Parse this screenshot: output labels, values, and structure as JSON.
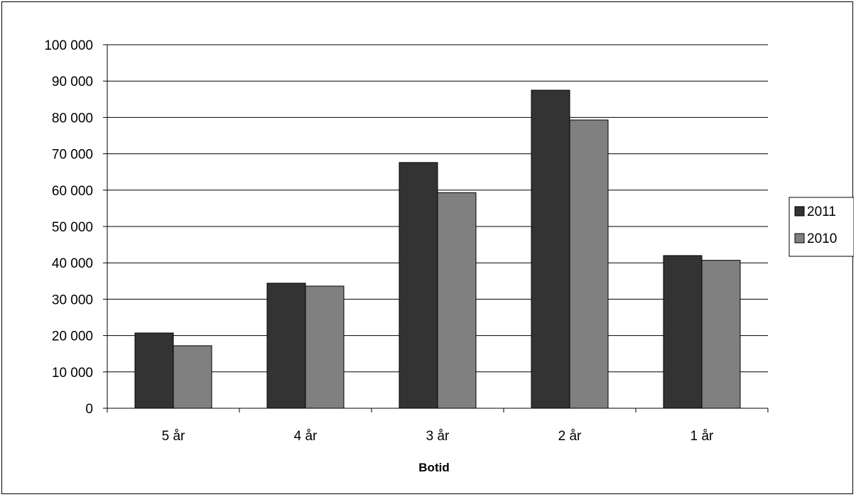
{
  "chart_data": {
    "type": "bar",
    "title": "",
    "xlabel": "Botid",
    "ylabel": "",
    "categories": [
      "5 år",
      "4 år",
      "3 år",
      "2 år",
      "1 år"
    ],
    "series": [
      {
        "name": "2011",
        "color": "#333333",
        "values": [
          20700,
          34400,
          67600,
          87500,
          42000
        ]
      },
      {
        "name": "2010",
        "color": "#808080",
        "values": [
          17200,
          33600,
          59300,
          79300,
          40700
        ]
      }
    ],
    "ylim": [
      0,
      100000
    ],
    "yticks": [
      0,
      10000,
      20000,
      30000,
      40000,
      50000,
      60000,
      70000,
      80000,
      90000,
      100000
    ],
    "ytick_labels": [
      "0",
      "10 000",
      "20 000",
      "30 000",
      "40 000",
      "50 000",
      "60 000",
      "70 000",
      "80 000",
      "90 000",
      "100 000"
    ],
    "grid": "horizontal",
    "legend_position": "right"
  }
}
